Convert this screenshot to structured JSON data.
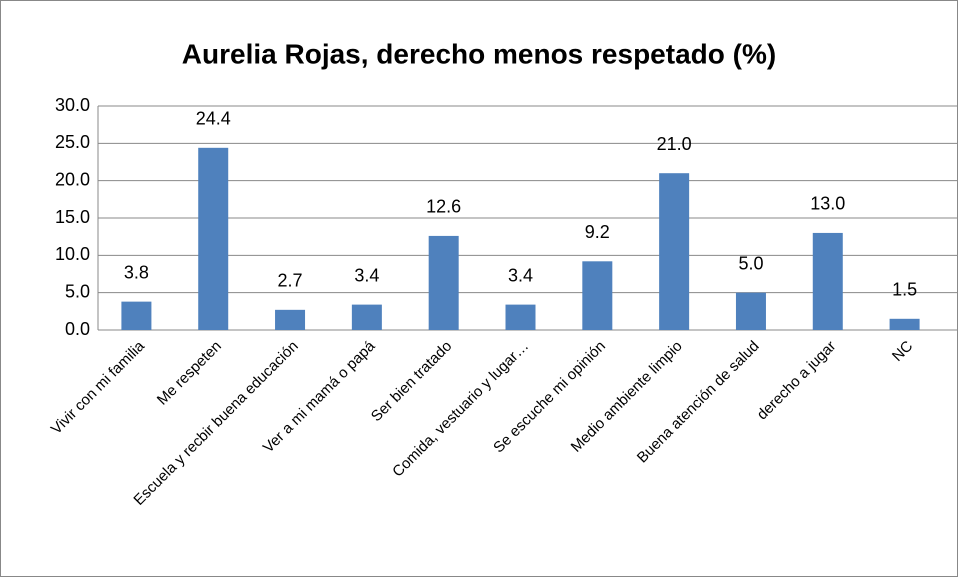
{
  "chart_data": {
    "type": "bar",
    "title": "Aurelia Rojas, derecho menos respetado (%)",
    "categories": [
      "Vivir con mi familia",
      "Me respeten",
      "Escuela y recbir buena educación",
      "Ver a mi mamá o papá",
      "Ser bien tratado",
      "Comida, vestuario y lugar…",
      "Se escuche mi opinión",
      "Medio ambiente limpio",
      "Buena atención de salud",
      "derecho a jugar",
      "NC"
    ],
    "values": [
      3.8,
      24.4,
      2.7,
      3.4,
      12.6,
      3.4,
      9.2,
      21.0,
      5.0,
      13.0,
      1.5
    ],
    "value_labels": [
      "3.8",
      "24.4",
      "2.7",
      "3.4",
      "12.6",
      "3.4",
      "9.2",
      "21.0",
      "5.0",
      "13.0",
      "1.5"
    ],
    "color": "#4f81bd",
    "ylim": [
      0,
      30
    ],
    "yticks": [
      {
        "value": 0,
        "label": "0.0"
      },
      {
        "value": 5,
        "label": "5.0"
      },
      {
        "value": 10,
        "label": "10.0"
      },
      {
        "value": 15,
        "label": "15.0"
      },
      {
        "value": 20,
        "label": "20.0"
      },
      {
        "value": 25,
        "label": "25.0"
      },
      {
        "value": 30,
        "label": "30.0"
      }
    ],
    "grid": true
  }
}
